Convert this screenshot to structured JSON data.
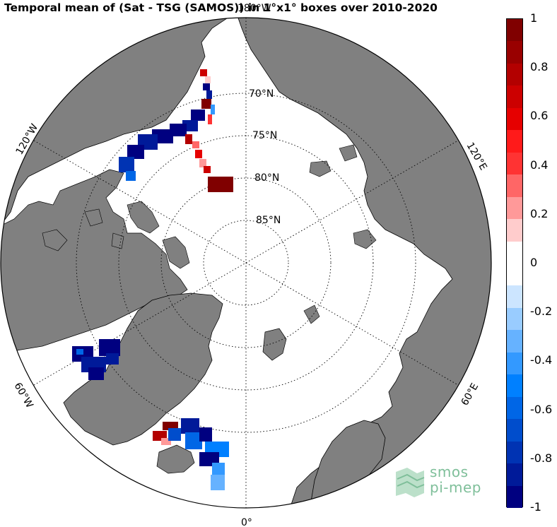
{
  "title": "Temporal mean of (Sat - TSG (SAMOS)) in 1°x1° boxes over 2010-2020",
  "map": {
    "projection": "north-polar-stereographic",
    "lat_labels": [
      "70°N",
      "75°N",
      "80°N",
      "85°N"
    ],
    "lon_labels": {
      "top": "180°W",
      "left_upper": "120°W",
      "left_lower": "60°W",
      "bottom": "0°",
      "right_lower": "60°E",
      "right_upper": "120°E"
    },
    "land_color": "#808080",
    "ocean_color": "#ffffff"
  },
  "colorbar": {
    "min": -1,
    "max": 1,
    "tick_labels": [
      "1",
      "0.8",
      "0.6",
      "0.4",
      "0.2",
      "0",
      "-0.2",
      "-0.4",
      "-0.6",
      "-0.8",
      "-1"
    ],
    "colors_top_to_bottom": [
      "#800000",
      "#990000",
      "#b30000",
      "#cc0000",
      "#e60000",
      "#ff1a1a",
      "#ff3333",
      "#ff6666",
      "#ff9999",
      "#ffcccc",
      "#ffffff",
      "#ffffff",
      "#cce5ff",
      "#99ccff",
      "#66b2ff",
      "#3399ff",
      "#0080ff",
      "#0066e6",
      "#004dcc",
      "#0033b3",
      "#001a99",
      "#000080"
    ]
  },
  "logo": {
    "line1": "smos",
    "line2": "pi-mep"
  }
}
